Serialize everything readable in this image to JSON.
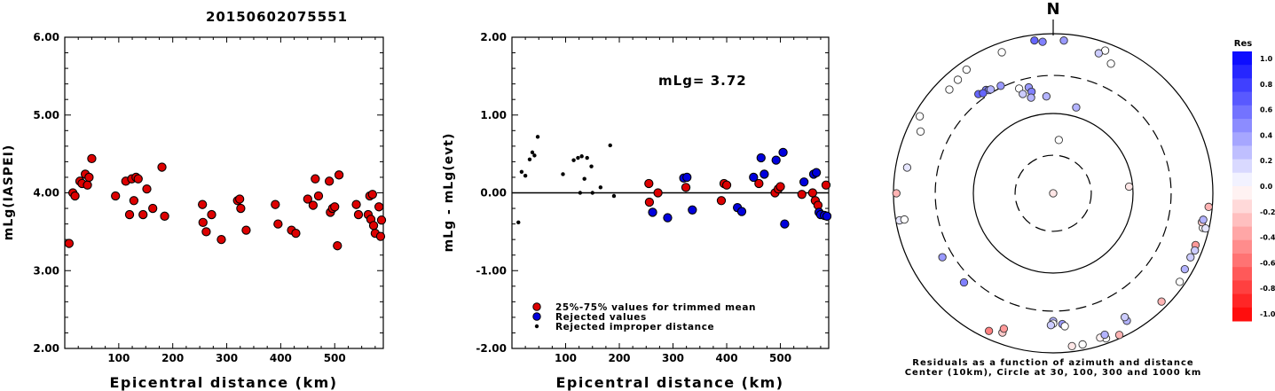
{
  "title": "20150602075551",
  "chart_data": [
    {
      "type": "scatter",
      "xlabel": "Epicentral distance (km)",
      "ylabel": "mLg(IASPEI)",
      "xlim": [
        0,
        590
      ],
      "ylim": [
        2.0,
        6.0
      ],
      "x_ticks": [
        "100",
        "200",
        "300",
        "400",
        "500"
      ],
      "y_ticks": [
        "2.00",
        "3.00",
        "4.00",
        "5.00",
        "6.00"
      ],
      "series": [
        {
          "color": "#dd0000",
          "points": [
            [
              8,
              3.35
            ],
            [
              15,
              4.0
            ],
            [
              19,
              3.96
            ],
            [
              28,
              4.15
            ],
            [
              32,
              4.12
            ],
            [
              38,
              4.24
            ],
            [
              42,
              4.1
            ],
            [
              45,
              4.2
            ],
            [
              50,
              4.44
            ],
            [
              94,
              3.96
            ],
            [
              113,
              4.15
            ],
            [
              120,
              3.72
            ],
            [
              124,
              4.18
            ],
            [
              128,
              3.9
            ],
            [
              132,
              4.2
            ],
            [
              136,
              4.18
            ],
            [
              145,
              3.72
            ],
            [
              152,
              4.05
            ],
            [
              163,
              3.8
            ],
            [
              180,
              4.33
            ],
            [
              185,
              3.7
            ],
            [
              255,
              3.85
            ],
            [
              256,
              3.62
            ],
            [
              262,
              3.5
            ],
            [
              272,
              3.72
            ],
            [
              290,
              3.4
            ],
            [
              320,
              3.9
            ],
            [
              324,
              3.92
            ],
            [
              326,
              3.8
            ],
            [
              336,
              3.52
            ],
            [
              390,
              3.85
            ],
            [
              395,
              3.6
            ],
            [
              420,
              3.52
            ],
            [
              428,
              3.48
            ],
            [
              450,
              3.92
            ],
            [
              460,
              3.84
            ],
            [
              464,
              4.18
            ],
            [
              470,
              3.96
            ],
            [
              490,
              4.15
            ],
            [
              492,
              3.75
            ],
            [
              496,
              3.8
            ],
            [
              500,
              3.82
            ],
            [
              505,
              3.32
            ],
            [
              508,
              4.23
            ],
            [
              540,
              3.85
            ],
            [
              544,
              3.72
            ],
            [
              562,
              3.72
            ],
            [
              565,
              3.96
            ],
            [
              567,
              3.66
            ],
            [
              570,
              3.98
            ],
            [
              572,
              3.58
            ],
            [
              575,
              3.48
            ],
            [
              582,
              3.82
            ],
            [
              585,
              3.44
            ],
            [
              592,
              3.65
            ]
          ]
        }
      ]
    },
    {
      "type": "scatter",
      "xlabel": "Epicentral distance (km)",
      "ylabel": "mLg - mLg(evt)",
      "xlim": [
        0,
        590
      ],
      "ylim": [
        -2.0,
        2.0
      ],
      "x_ticks": [
        "100",
        "200",
        "300",
        "400",
        "500"
      ],
      "y_ticks": [
        "-2.00",
        "-1.00",
        "0.00",
        "1.00",
        "2.00"
      ],
      "annotation": "mLg= 3.72",
      "legend": [
        {
          "label": "25%-75% values for trimmed mean",
          "color": "#dd0000",
          "style": "large"
        },
        {
          "label": "Rejected values",
          "color": "#0000dd",
          "style": "large"
        },
        {
          "label": "Rejected improper distance",
          "color": "#000000",
          "style": "small"
        }
      ],
      "series": [
        {
          "name": "25%-75% values for trimmed mean",
          "color": "#dd0000",
          "points": [
            [
              255,
              0.12
            ],
            [
              256,
              -0.12
            ],
            [
              272,
              0.0
            ],
            [
              324,
              0.07
            ],
            [
              390,
              -0.1
            ],
            [
              395,
              0.12
            ],
            [
              400,
              0.1
            ],
            [
              460,
              0.12
            ],
            [
              490,
              0.0
            ],
            [
              496,
              0.05
            ],
            [
              500,
              0.08
            ],
            [
              540,
              -0.02
            ],
            [
              560,
              0.0
            ],
            [
              565,
              -0.1
            ],
            [
              570,
              -0.16
            ],
            [
              585,
              0.1
            ]
          ]
        },
        {
          "name": "Rejected values",
          "color": "#0000dd",
          "points": [
            [
              262,
              -0.25
            ],
            [
              290,
              -0.32
            ],
            [
              320,
              0.19
            ],
            [
              326,
              0.2
            ],
            [
              336,
              -0.22
            ],
            [
              420,
              -0.19
            ],
            [
              428,
              -0.24
            ],
            [
              450,
              0.2
            ],
            [
              464,
              0.45
            ],
            [
              470,
              0.24
            ],
            [
              492,
              0.42
            ],
            [
              505,
              0.52
            ],
            [
              508,
              -0.4
            ],
            [
              544,
              0.14
            ],
            [
              562,
              0.24
            ],
            [
              567,
              0.26
            ],
            [
              572,
              -0.25
            ],
            [
              575,
              -0.28
            ],
            [
              582,
              -0.29
            ],
            [
              590,
              -0.3
            ]
          ]
        },
        {
          "name": "Rejected improper distance",
          "color": "#000000",
          "points": [
            [
              12,
              -0.38
            ],
            [
              18,
              0.27
            ],
            [
              25,
              0.22
            ],
            [
              33,
              0.43
            ],
            [
              38,
              0.52
            ],
            [
              42,
              0.48
            ],
            [
              48,
              0.72
            ],
            [
              95,
              0.24
            ],
            [
              115,
              0.42
            ],
            [
              123,
              0.45
            ],
            [
              127,
              0.0
            ],
            [
              130,
              0.47
            ],
            [
              135,
              0.18
            ],
            [
              140,
              0.45
            ],
            [
              148,
              0.34
            ],
            [
              150,
              0.0
            ],
            [
              165,
              0.07
            ],
            [
              183,
              0.61
            ],
            [
              190,
              -0.04
            ]
          ]
        }
      ]
    },
    {
      "type": "polar-scatter",
      "north_label": "N",
      "caption_line1": "Residuals as a function of azimuth and distance",
      "caption_line2": "Center (10km), Circle at 30, 100, 300 and 1000 km",
      "rings_km": [
        30,
        100,
        300,
        1000
      ],
      "ring_styles": [
        "dashed",
        "solid",
        "dashed",
        "solid"
      ],
      "note": "points given as [azimuth_deg, distance_km, residual]",
      "points": [
        [
          6,
          47,
          0.0
        ],
        [
          20,
          800,
          0.0
        ],
        [
          24,
          600,
          0.0
        ],
        [
          18,
          700,
          0.2
        ],
        [
          -4,
          800,
          0.5
        ],
        [
          -7,
          850,
          0.6
        ],
        [
          4,
          830,
          0.4
        ],
        [
          -20,
          760,
          0.0
        ],
        [
          -35,
          780,
          0.0
        ],
        [
          -45,
          690,
          0.0
        ],
        [
          -65,
          680,
          0.0
        ],
        [
          -100,
          900,
          0.1
        ],
        [
          -80,
          720,
          0.1
        ],
        [
          -33,
          350,
          0.5
        ],
        [
          -32,
          335,
          0.5
        ],
        [
          -31,
          330,
          0.3
        ],
        [
          -37,
          360,
          0.6
        ],
        [
          -35,
          340,
          0.6
        ],
        [
          -26,
          315,
          0.4
        ],
        [
          -18,
          240,
          0.0
        ],
        [
          -13,
          230,
          0.4
        ],
        [
          -12,
          200,
          0.5
        ],
        [
          -4,
          165,
          0.3
        ],
        [
          -13,
          170,
          0.3
        ],
        [
          -17,
          200,
          0.2
        ],
        [
          15,
          130,
          0.3
        ],
        [
          85,
          90,
          -0.1
        ],
        [
          100,
          10,
          -0.1
        ],
        [
          155,
          910,
          -0.3
        ],
        [
          160,
          860,
          0.0
        ],
        [
          169,
          850,
          0.0
        ],
        [
          173,
          850,
          -0.1
        ],
        [
          162,
          800,
          -0.05
        ],
        [
          160,
          770,
          0.3
        ],
        [
          200,
          720,
          -0.2
        ],
        [
          205,
          800,
          -0.5
        ],
        [
          120,
          800,
          0.3
        ],
        [
          125,
          860,
          0.0
        ],
        [
          110,
          790,
          -0.4
        ],
        [
          112,
          820,
          0.2
        ],
        [
          103,
          840,
          0.0
        ],
        [
          101,
          790,
          -0.2
        ],
        [
          103,
          910,
          0.1
        ],
        [
          95,
          900,
          -0.3
        ],
        [
          100,
          810,
          0.3
        ],
        [
          115,
          790,
          0.2
        ],
        [
          135,
          830,
          -0.3
        ],
        [
          150,
          700,
          0.3
        ],
        [
          150,
          620,
          0.2
        ],
        [
          180,
          400,
          0.3
        ],
        [
          176,
          440,
          0.4
        ],
        [
          180,
          430,
          0.0
        ],
        [
          175,
          470,
          0.0
        ],
        [
          181,
          450,
          0.2
        ],
        [
          200,
          640,
          -0.4
        ],
        [
          225,
          380,
          0.5
        ],
        [
          240,
          400,
          0.4
        ],
        [
          260,
          780,
          0.0
        ],
        [
          270,
          920,
          -0.3
        ],
        [
          300,
          850,
          0.0
        ],
        [
          320,
          720,
          0.0
        ]
      ],
      "colorbar": {
        "title": "Res",
        "labels": [
          "1.0",
          "0.8",
          "0.6",
          "0.4",
          "0.2",
          "0.0",
          "-0.2",
          "-0.4",
          "-0.6",
          "-0.8",
          "-1.0"
        ]
      }
    }
  ]
}
